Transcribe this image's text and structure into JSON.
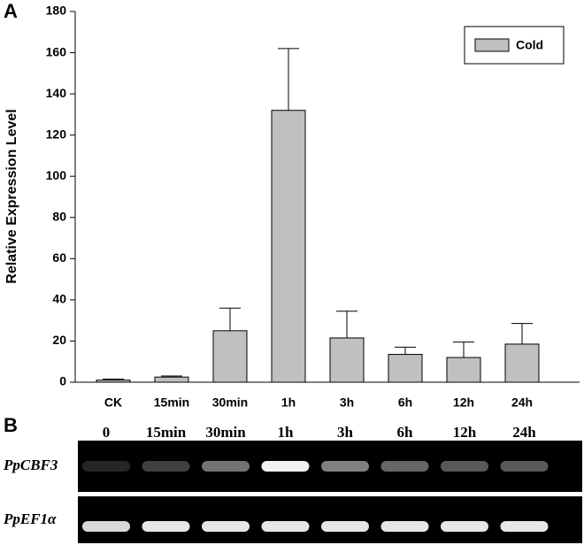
{
  "chart_data": {
    "type": "bar",
    "panel_label": "A",
    "y_label": "Relative Expression Level",
    "categories": [
      "CK",
      "15min",
      "30min",
      "1h",
      "3h",
      "6h",
      "12h",
      "24h"
    ],
    "series": [
      {
        "name": "Cold",
        "color": "#c0c0c0",
        "values": [
          1,
          2.5,
          25,
          132,
          21.5,
          13.5,
          12,
          18.5
        ],
        "errors": [
          0.5,
          0.5,
          11,
          30,
          13,
          3.5,
          7.5,
          10
        ]
      }
    ],
    "ylim": [
      0,
      180
    ],
    "yticks": [
      0,
      20,
      40,
      60,
      80,
      100,
      120,
      140,
      160,
      180
    ],
    "legend": "upper right"
  },
  "gel": {
    "panel_label": "B",
    "lanes": [
      "0",
      "15min",
      "30min",
      "1h",
      "3h",
      "6h",
      "12h",
      "24h"
    ],
    "rows": [
      "PpCBF3",
      "PpEF1α"
    ]
  }
}
